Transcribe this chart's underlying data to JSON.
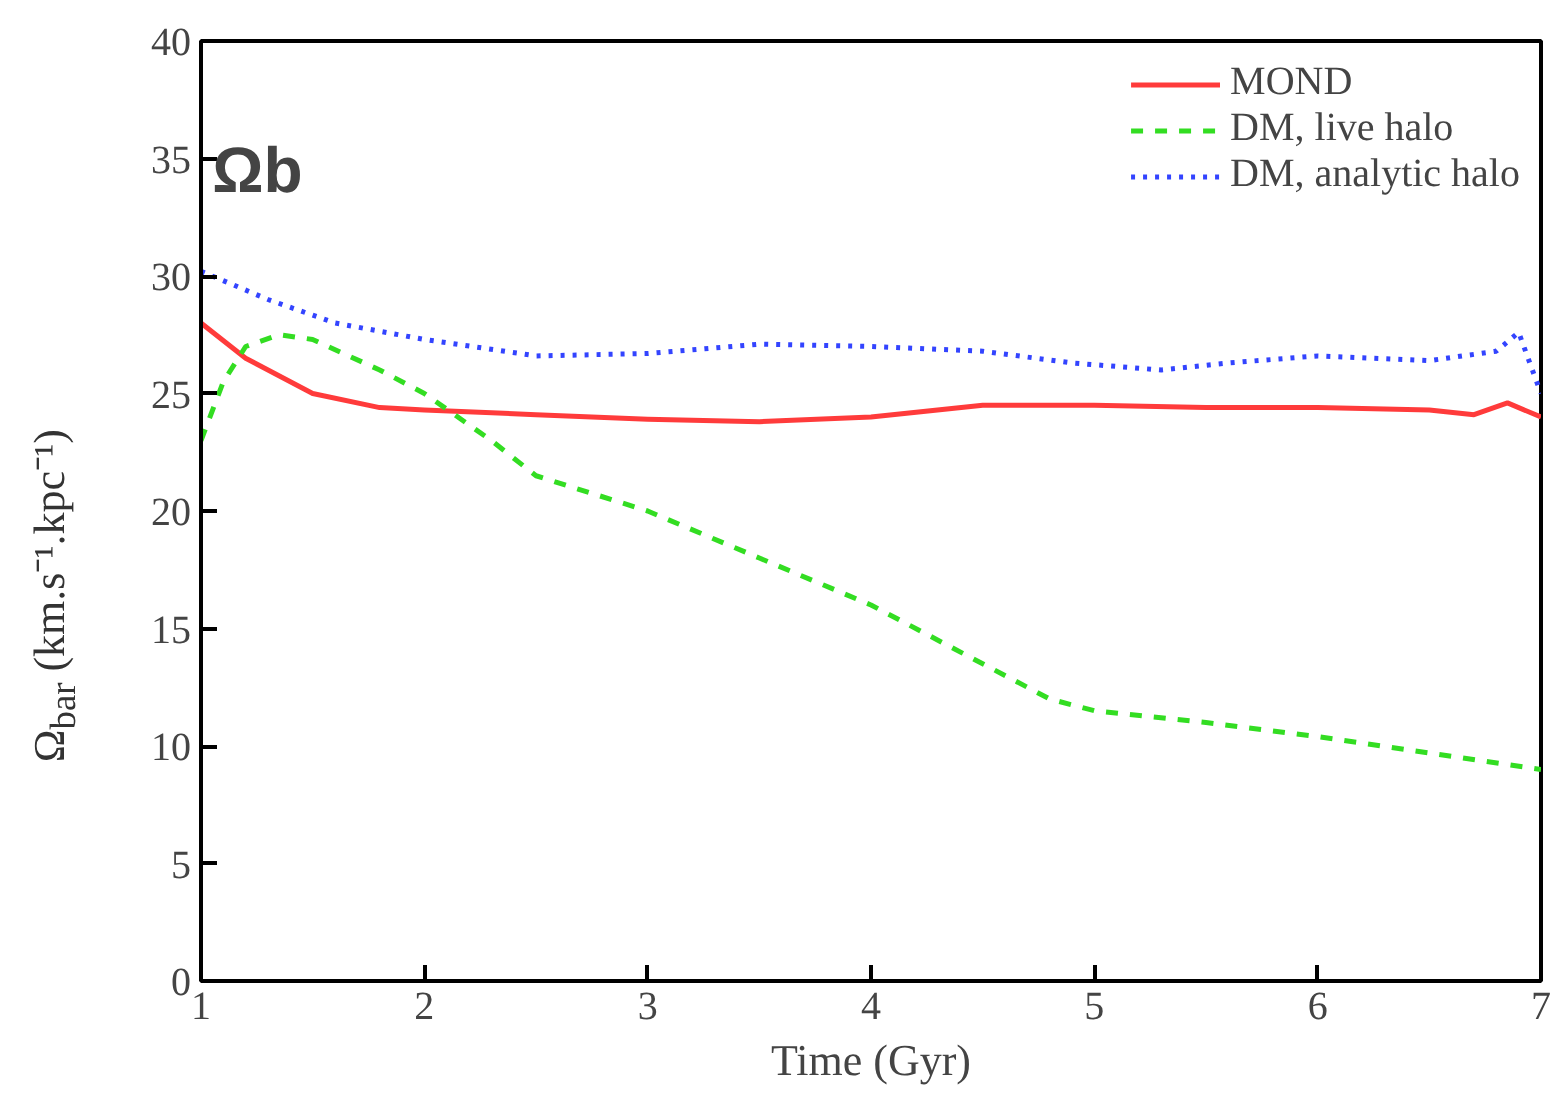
{
  "chart_data": {
    "type": "line",
    "xlabel": "Time (Gyr)",
    "ylabel": "Ω$_{bar}$ (km.s⁻¹.kpc⁻¹)",
    "annotations": [
      "Ωb"
    ],
    "xlim": [
      1,
      7
    ],
    "xticks": [
      1,
      2,
      3,
      4,
      5,
      6,
      7
    ],
    "ylim": [
      0,
      40
    ],
    "yticks": [
      0,
      5,
      10,
      15,
      20,
      25,
      30,
      35,
      40
    ],
    "grid": false,
    "legend": "top right",
    "series": [
      {
        "name": "MOND",
        "color": "#ff3b3b",
        "line_style": "solid",
        "x": [
          1,
          1.2,
          1.5,
          1.8,
          2,
          2.5,
          3,
          3.5,
          4,
          4.5,
          5,
          5.5,
          6,
          6.5,
          6.7,
          6.85,
          7
        ],
        "values": [
          28,
          26.5,
          25,
          24.4,
          24.3,
          24.1,
          23.9,
          23.8,
          24.0,
          24.5,
          24.5,
          24.4,
          24.4,
          24.3,
          24.1,
          24.6,
          24.0
        ]
      },
      {
        "name": "DM, live halo",
        "color": "#33dd22",
        "line_style": "dashed",
        "x": [
          1,
          1.1,
          1.2,
          1.35,
          1.5,
          1.8,
          2,
          2.3,
          2.5,
          3,
          3.5,
          4,
          4.5,
          4.8,
          5,
          5.5,
          6,
          6.5,
          7
        ],
        "values": [
          23,
          25.5,
          27,
          27.5,
          27.3,
          26,
          25,
          23,
          21.5,
          20,
          18,
          16,
          13.5,
          12,
          11.5,
          11,
          10.4,
          9.7,
          9
        ]
      },
      {
        "name": "DM, analytic halo",
        "color": "#3344ff",
        "line_style": "dotted",
        "x": [
          1,
          1.3,
          1.6,
          2,
          2.5,
          3,
          3.5,
          4,
          4.5,
          4.9,
          5.3,
          5.6,
          6,
          6.5,
          6.8,
          6.9,
          7
        ],
        "values": [
          30.2,
          29,
          28,
          27.3,
          26.6,
          26.7,
          27.1,
          27,
          26.8,
          26.3,
          26,
          26.3,
          26.6,
          26.4,
          26.8,
          27.6,
          25
        ]
      }
    ]
  }
}
